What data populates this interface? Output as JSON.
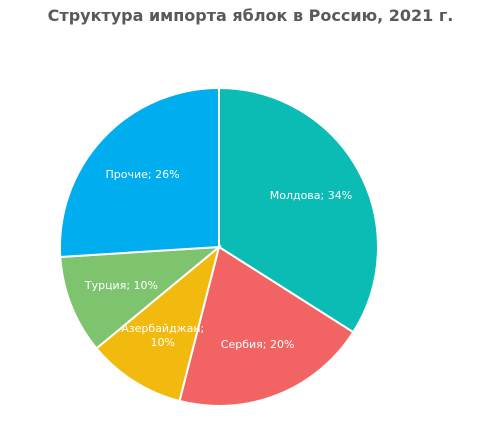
{
  "chart_data": {
    "type": "pie",
    "title": "Структура импорта яблок в Россию, 2021 г.",
    "categories": [
      "Молдова",
      "Сербия",
      "Азербайджан",
      "Турция",
      "Прочие"
    ],
    "values": [
      34,
      20,
      10,
      10,
      26
    ],
    "value_labels": [
      "Молдова; 34%",
      "Сербия; 20%",
      "Азербайджан; 10%",
      "Турция; 10%",
      "Прочие; 26%"
    ],
    "colors": [
      "#0bbcb5",
      "#f26464",
      "#f2b90f",
      "#7ec46f",
      "#00aeef"
    ]
  }
}
